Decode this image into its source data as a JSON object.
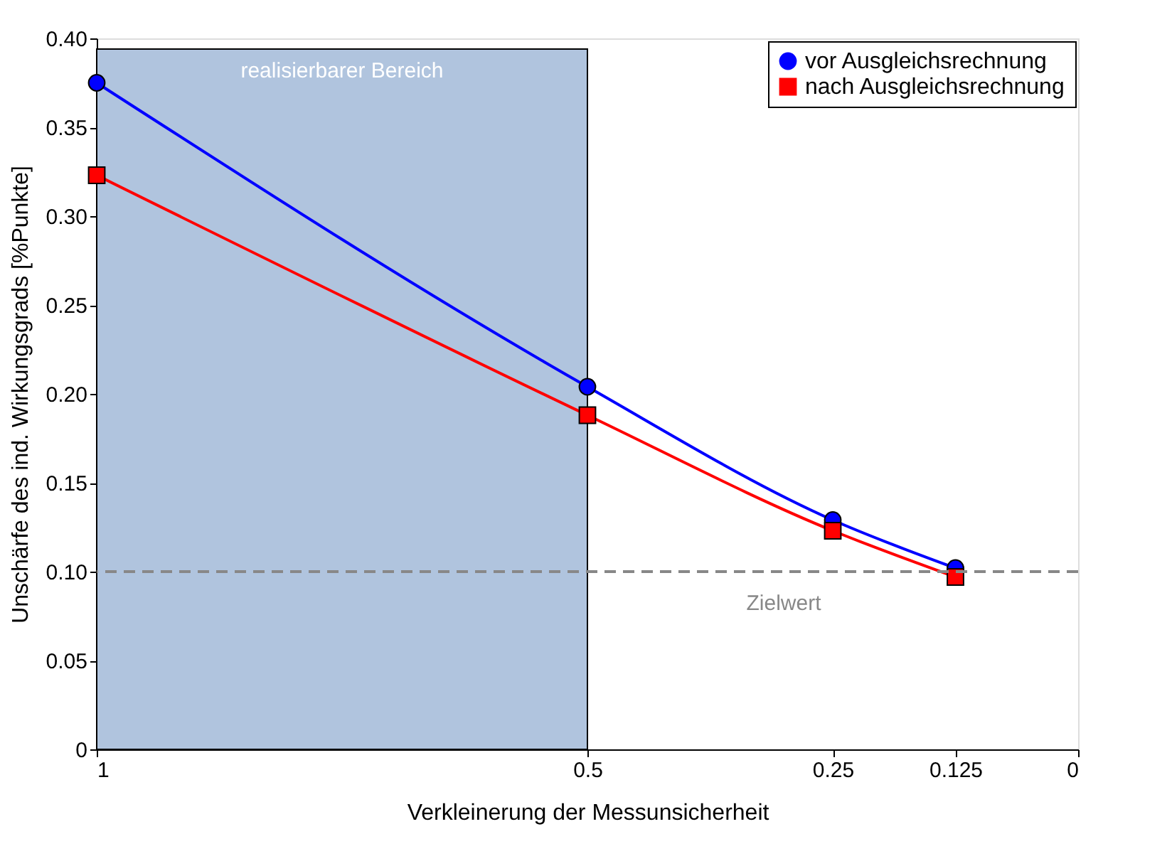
{
  "chart_data": {
    "type": "line",
    "xlabel": "Verkleinerung der Messunsicherheit",
    "ylabel": "Unschärfe des ind. Wirkungsgrads [%Punkte]",
    "x": [
      1,
      0.5,
      0.25,
      0.125
    ],
    "series": [
      {
        "name": "vor Ausgleichsrechnung",
        "color": "#0000ff",
        "marker": "circle",
        "values": [
          0.375,
          0.204,
          0.129,
          0.102
        ]
      },
      {
        "name": "nach Ausgleichsrechnung",
        "color": "#ff0000",
        "marker": "square",
        "values": [
          0.323,
          0.188,
          0.123,
          0.097
        ]
      }
    ],
    "xlim": [
      1,
      0
    ],
    "xticks": [
      1,
      0.5,
      0.25,
      0.125,
      0
    ],
    "ylim": [
      0,
      0.4
    ],
    "yticks": [
      {
        "value": 0,
        "label": "0"
      },
      0.05,
      {
        "value": 0.1,
        "label": "0.10"
      },
      0.15,
      {
        "value": 0.2,
        "label": "0.20"
      },
      0.25,
      {
        "value": 0.3,
        "label": "0.30"
      },
      0.35,
      {
        "value": 0.4,
        "label": "0.40"
      }
    ],
    "ref_lines": [
      {
        "axis": "y",
        "value": 0.1,
        "label": "Zielwert",
        "color": "#888888",
        "line_style": "dashed"
      }
    ],
    "bands": [
      {
        "axis": "x",
        "from": 1,
        "to": 0.5,
        "label": "realisierbarer Bereich",
        "color": "#b0c4de"
      }
    ],
    "legend": "top right",
    "grid": false,
    "line_style": "solid"
  }
}
